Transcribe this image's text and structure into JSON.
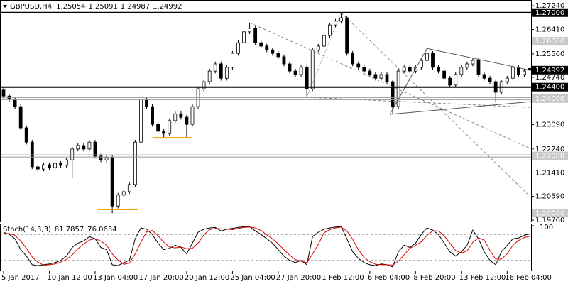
{
  "chart_data": [
    {
      "type": "candlestick",
      "title": "GBPUSD,H4",
      "categories": [
        "5 Jan 2017",
        null,
        null,
        null,
        null,
        null,
        null,
        null,
        "10 Jan 12:00",
        null,
        null,
        null,
        null,
        null,
        null,
        null,
        "13 Jan 04:00",
        null,
        null,
        null,
        null,
        null,
        null,
        null,
        "17 Jan 20:00",
        null,
        null,
        null,
        null,
        null,
        null,
        null,
        "20 Jan 12:00",
        null,
        null,
        null,
        null,
        null,
        null,
        null,
        "25 Jan 04:00",
        null,
        null,
        null,
        null,
        null,
        null,
        null,
        "27 Jan 20:00",
        null,
        null,
        null,
        null,
        null,
        null,
        null,
        "1 Feb 12:00",
        null,
        null,
        null,
        null,
        null,
        null,
        null,
        "6 Feb 04:00",
        null,
        null,
        null,
        null,
        null,
        null,
        null,
        "8 Feb 20:00",
        null,
        null,
        null,
        null,
        null,
        null,
        null,
        "13 Feb 12:00",
        null,
        null,
        null,
        null,
        null,
        null,
        null,
        "16 Feb 04:00",
        null,
        null,
        null,
        null
      ],
      "open": [
        1.243,
        1.2409,
        1.2397,
        1.2372,
        1.2298,
        1.2248,
        1.2162,
        1.2154,
        1.2169,
        1.2159,
        1.2174,
        1.2167,
        1.2186,
        1.2224,
        1.2236,
        1.2224,
        1.2248,
        1.2199,
        1.2186,
        1.2194,
        1.2025,
        1.2063,
        1.2075,
        1.21,
        1.2248,
        1.2397,
        1.2372,
        1.231,
        1.2286,
        1.2278,
        1.2323,
        1.2347,
        1.2335,
        1.231,
        1.2372,
        1.2434,
        1.2459,
        1.2496,
        1.2521,
        1.2471,
        1.2509,
        1.2558,
        1.2595,
        1.2633,
        1.2645,
        1.2595,
        1.2583,
        1.257,
        1.2558,
        1.2546,
        1.2521,
        1.2496,
        1.2484,
        1.2509,
        1.2434,
        1.257,
        1.2583,
        1.262,
        1.2657,
        1.267,
        1.2682,
        1.2558,
        1.2521,
        1.2509,
        1.2496,
        1.2484,
        1.2471,
        1.2484,
        1.2459,
        1.2372,
        1.2496,
        1.2509,
        1.2496,
        1.2509,
        1.2533,
        1.2558,
        1.2509,
        1.2496,
        1.2471,
        1.2447,
        1.2484,
        1.2509,
        1.2521,
        1.2533,
        1.2484,
        1.2471,
        1.2459,
        1.2422,
        1.2459,
        1.2471,
        1.2509,
        1.2484,
        1.25054
      ],
      "high": [
        1.2438,
        1.2417,
        1.2405,
        1.238,
        1.2306,
        1.2256,
        1.217,
        1.2177,
        1.2177,
        1.2182,
        1.2182,
        1.2194,
        1.2232,
        1.2244,
        1.2244,
        1.2256,
        1.2256,
        1.2207,
        1.2202,
        1.2202,
        1.2071,
        1.2083,
        1.2108,
        1.2256,
        1.2412,
        1.2405,
        1.238,
        1.2318,
        1.2294,
        1.2331,
        1.2355,
        1.2355,
        1.2343,
        1.238,
        1.2442,
        1.2467,
        1.2504,
        1.2529,
        1.2529,
        1.2517,
        1.2566,
        1.2603,
        1.2641,
        1.2665,
        1.2653,
        1.2603,
        1.2591,
        1.2578,
        1.2566,
        1.2554,
        1.2529,
        1.2504,
        1.2517,
        1.2517,
        1.2578,
        1.2591,
        1.2628,
        1.2665,
        1.2678,
        1.27,
        1.269,
        1.2566,
        1.2529,
        1.2517,
        1.2504,
        1.2492,
        1.2492,
        1.2492,
        1.2467,
        1.2504,
        1.2517,
        1.2517,
        1.2517,
        1.2541,
        1.2575,
        1.2566,
        1.2517,
        1.2504,
        1.2479,
        1.2492,
        1.2517,
        1.2529,
        1.2541,
        1.2541,
        1.2492,
        1.2479,
        1.2467,
        1.2467,
        1.2479,
        1.2517,
        1.2517,
        1.2504,
        1.25091
      ],
      "low": [
        1.2401,
        1.2389,
        1.2364,
        1.229,
        1.224,
        1.2154,
        1.2146,
        1.2146,
        1.2151,
        1.2151,
        1.2159,
        1.2159,
        1.2124,
        1.2216,
        1.2216,
        1.2216,
        1.2191,
        1.2178,
        1.2178,
        1.2,
        1.2017,
        1.2055,
        1.2067,
        1.2092,
        1.224,
        1.2364,
        1.2302,
        1.2278,
        1.2262,
        1.227,
        1.2315,
        1.2327,
        1.2265,
        1.2302,
        1.2364,
        1.2426,
        1.2451,
        1.2488,
        1.2463,
        1.2463,
        1.2501,
        1.255,
        1.2587,
        1.2625,
        1.2587,
        1.2575,
        1.2562,
        1.255,
        1.2538,
        1.2513,
        1.2488,
        1.2476,
        1.2476,
        1.2405,
        1.2426,
        1.2562,
        1.2575,
        1.2612,
        1.2649,
        1.2662,
        1.255,
        1.2513,
        1.2501,
        1.2488,
        1.2476,
        1.2463,
        1.2463,
        1.2451,
        1.2345,
        1.2364,
        1.2488,
        1.2488,
        1.2488,
        1.2501,
        1.2525,
        1.2501,
        1.2488,
        1.2463,
        1.2439,
        1.2439,
        1.2476,
        1.2501,
        1.2513,
        1.2476,
        1.2463,
        1.2451,
        1.239,
        1.2414,
        1.2451,
        1.2463,
        1.2476,
        1.2476,
        1.24987
      ],
      "close": [
        1.2409,
        1.2397,
        1.2372,
        1.2298,
        1.2248,
        1.2162,
        1.2154,
        1.2169,
        1.2159,
        1.2174,
        1.2167,
        1.2186,
        1.2224,
        1.2236,
        1.2224,
        1.2248,
        1.2199,
        1.2186,
        1.2194,
        1.2025,
        1.2063,
        1.2075,
        1.21,
        1.2248,
        1.2397,
        1.2372,
        1.231,
        1.2286,
        1.2278,
        1.2323,
        1.2347,
        1.2335,
        1.231,
        1.2372,
        1.2434,
        1.2459,
        1.2496,
        1.2521,
        1.2471,
        1.2509,
        1.2558,
        1.2595,
        1.2633,
        1.2645,
        1.2595,
        1.2583,
        1.257,
        1.2558,
        1.2546,
        1.2521,
        1.2496,
        1.2484,
        1.2509,
        1.2434,
        1.257,
        1.2583,
        1.262,
        1.2657,
        1.267,
        1.2682,
        1.2558,
        1.2521,
        1.2509,
        1.2496,
        1.2484,
        1.2471,
        1.2484,
        1.2459,
        1.2372,
        1.2496,
        1.2509,
        1.2496,
        1.2509,
        1.2533,
        1.2558,
        1.2509,
        1.2496,
        1.2471,
        1.2447,
        1.2484,
        1.2509,
        1.2521,
        1.2533,
        1.2484,
        1.2471,
        1.2459,
        1.2422,
        1.2459,
        1.2471,
        1.2509,
        1.2484,
        1.2496,
        1.24992
      ],
      "up_color": "#ffffff",
      "down_color": "#000000",
      "ylim": [
        1.1971,
        1.2744
      ],
      "yticks": [
        {
          "value": 1.2724,
          "label": "1.27240"
        },
        {
          "value": 1.2641,
          "label": "1.26410"
        },
        {
          "value": 1.2556,
          "label": "1.25560"
        },
        {
          "value": 1.2474,
          "label": "1.24740"
        },
        {
          "value": 1.2309,
          "label": "1.23090"
        },
        {
          "value": 1.2224,
          "label": "1.22240"
        },
        {
          "value": 1.2141,
          "label": "1.21410"
        },
        {
          "value": 1.2059,
          "label": "1.20590"
        },
        {
          "value": 1.1976,
          "label": "1.19760"
        }
      ],
      "levels": [
        {
          "value": 1.27,
          "label": "1.27000",
          "style": "black"
        },
        {
          "value": 1.244,
          "label": "1.24400",
          "style": "black"
        },
        {
          "value": 1.26,
          "label": "1.26000",
          "style": "label"
        },
        {
          "value": 1.24,
          "label": "1.24000",
          "style": "grey"
        },
        {
          "value": 1.22,
          "label": "1.22000",
          "style": "grey"
        },
        {
          "value": 1.2,
          "label": "1.20000",
          "style": "label"
        }
      ],
      "supports": [
        {
          "value": 1.2263,
          "from": 26,
          "to": 33
        },
        {
          "value": 1.2013,
          "from": 16.5,
          "to": 23.5
        }
      ],
      "support_color": "#f0a000",
      "trendlines": [
        {
          "from": [
            43,
            1.2665
          ],
          "to": [
            92.5,
            1.2222
          ],
          "style": "dashed"
        },
        {
          "from": [
            59,
            1.27
          ],
          "to": [
            92.5,
            1.2049
          ],
          "style": "dashed"
        },
        {
          "from": [
            52.5,
            1.2405
          ],
          "to": [
            92.5,
            1.2369
          ],
          "style": "dashed"
        },
        {
          "from": [
            53,
            1.2405
          ],
          "to": [
            59,
            1.27
          ],
          "style": "dotted"
        },
        {
          "from": [
            74,
            1.2575
          ],
          "to": [
            92.5,
            1.2497
          ],
          "style": "solid"
        },
        {
          "from": [
            67.5,
            1.2345
          ],
          "to": [
            92.5,
            1.239
          ],
          "style": "solid"
        },
        {
          "from": [
            67.5,
            1.2345
          ],
          "to": [
            74,
            1.2575
          ],
          "style": "solid"
        }
      ]
    },
    {
      "type": "line",
      "title": "Stoch(14,3,3)",
      "series": [
        {
          "color": "#000000",
          "values": [
            85,
            80,
            70,
            45,
            30,
            10,
            8,
            10,
            12,
            15,
            20,
            30,
            50,
            60,
            65,
            75,
            70,
            50,
            45,
            10,
            8,
            15,
            20,
            70,
            95,
            92,
            80,
            60,
            45,
            48,
            55,
            50,
            35,
            60,
            85,
            92,
            95,
            96,
            88,
            92,
            94,
            96,
            98,
            98,
            88,
            80,
            70,
            60,
            45,
            30,
            20,
            15,
            20,
            10,
            75,
            85,
            92,
            95,
            97,
            98,
            70,
            40,
            25,
            15,
            10,
            8,
            12,
            10,
            5,
            40,
            55,
            50,
            60,
            80,
            95,
            90,
            80,
            60,
            40,
            30,
            40,
            55,
            90,
            70,
            40,
            20,
            10,
            40,
            55,
            70,
            72,
            78,
            81.7857
          ]
        },
        {
          "color": "#e00000",
          "values": [
            82,
            82,
            78,
            65,
            48,
            28,
            16,
            9,
            10,
            12,
            16,
            22,
            33,
            47,
            58,
            67,
            70,
            65,
            55,
            35,
            21,
            11,
            14,
            35,
            62,
            86,
            89,
            77,
            62,
            51,
            49,
            51,
            47,
            48,
            60,
            79,
            91,
            94,
            93,
            92,
            91,
            94,
            96,
            97,
            95,
            89,
            79,
            70,
            58,
            45,
            32,
            22,
            18,
            15,
            35,
            57,
            84,
            91,
            95,
            97,
            88,
            69,
            45,
            27,
            17,
            11,
            10,
            10,
            9,
            18,
            33,
            48,
            55,
            63,
            78,
            88,
            88,
            77,
            60,
            43,
            37,
            42,
            62,
            72,
            67,
            43,
            23,
            23,
            35,
            55,
            66,
            73,
            76.0634
          ]
        }
      ],
      "ylim": [
        0,
        100
      ],
      "yticks": [
        100
      ],
      "levels": [
        20,
        80
      ]
    }
  ]
}
